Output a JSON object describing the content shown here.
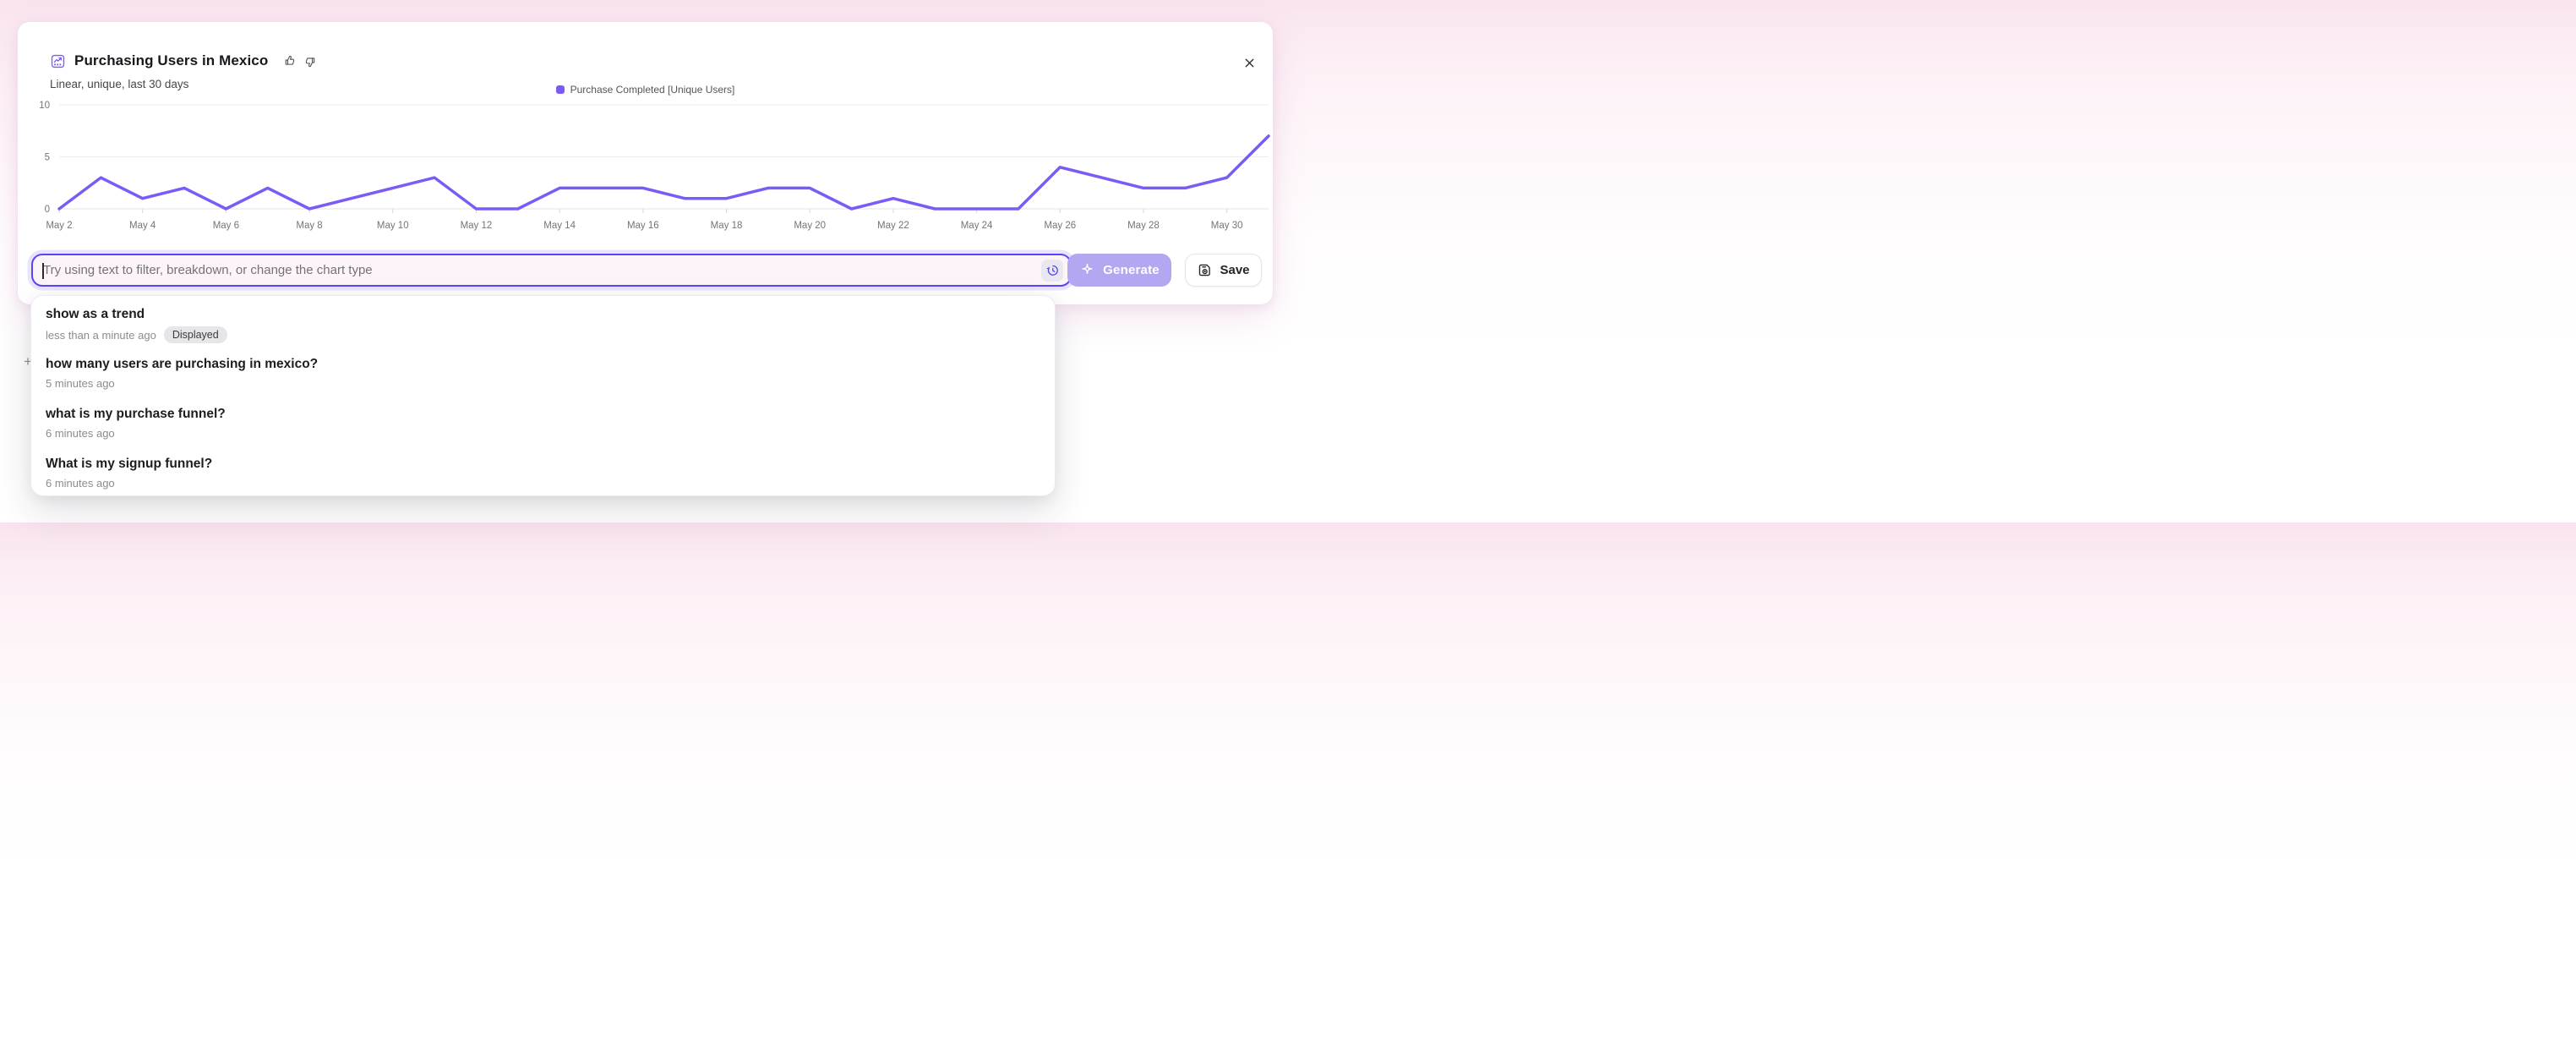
{
  "header": {
    "title": "Purchasing Users in Mexico",
    "subtitle": "Linear, unique, last 30 days"
  },
  "icons": {
    "title": "insights-chart-icon",
    "feedback_positive": "thumbs-up-icon",
    "feedback_negative": "thumbs-down-icon",
    "close": "close-icon",
    "history": "history-icon",
    "generate": "sparkle-icon",
    "save": "save-disk-icon"
  },
  "colors": {
    "accent_purple": "#7B5BF7",
    "input_border": "#5B45EF",
    "input_bg": "#FDF4FA",
    "generate_bg": "#B4A7F1",
    "page_top_pink": "#F8E3EE"
  },
  "chart_data": {
    "type": "line",
    "title": "Purchasing Users in Mexico",
    "xlabel": "",
    "ylabel": "",
    "x": [
      "May 2",
      "May 3",
      "May 4",
      "May 5",
      "May 6",
      "May 7",
      "May 8",
      "May 9",
      "May 10",
      "May 11",
      "May 12",
      "May 13",
      "May 14",
      "May 15",
      "May 16",
      "May 17",
      "May 18",
      "May 19",
      "May 20",
      "May 21",
      "May 22",
      "May 23",
      "May 24",
      "May 25",
      "May 26",
      "May 27",
      "May 28",
      "May 29",
      "May 30",
      "May 31"
    ],
    "series": [
      {
        "name": "Purchase Completed [Unique Users]",
        "color": "#7B5BF7",
        "values": [
          0,
          3,
          1,
          2,
          0,
          2,
          0,
          1,
          2,
          3,
          0,
          0,
          2,
          2,
          2,
          1,
          1,
          2,
          2,
          0,
          1,
          0,
          0,
          0,
          4,
          3,
          2,
          2,
          3,
          7
        ]
      }
    ],
    "x_tick_labels": [
      "May 2",
      "May 4",
      "May 6",
      "May 8",
      "May 10",
      "May 12",
      "May 14",
      "May 16",
      "May 18",
      "May 20",
      "May 22",
      "May 24",
      "May 26",
      "May 28",
      "May 30"
    ],
    "y_ticks": [
      0,
      5,
      10
    ],
    "ylim": [
      0,
      11
    ],
    "grid": "horizontal",
    "legend_position": "top-center"
  },
  "prompt_bar": {
    "value": "",
    "placeholder": "Try using text to filter, breakdown, or change the chart type",
    "generate_label": "Generate",
    "generate_disabled": true,
    "save_label": "Save"
  },
  "history_dropdown": {
    "items": [
      {
        "query": "show as a trend",
        "time": "less than a minute ago",
        "badge": "Displayed"
      },
      {
        "query": "how many users are purchasing in mexico?",
        "time": "5 minutes ago",
        "badge": null
      },
      {
        "query": "what is my purchase funnel?",
        "time": "6 minutes ago",
        "badge": null
      },
      {
        "query": "What is my signup funnel?",
        "time": "6 minutes ago",
        "badge": null
      }
    ]
  },
  "background": {
    "plus_glyph": "+"
  }
}
